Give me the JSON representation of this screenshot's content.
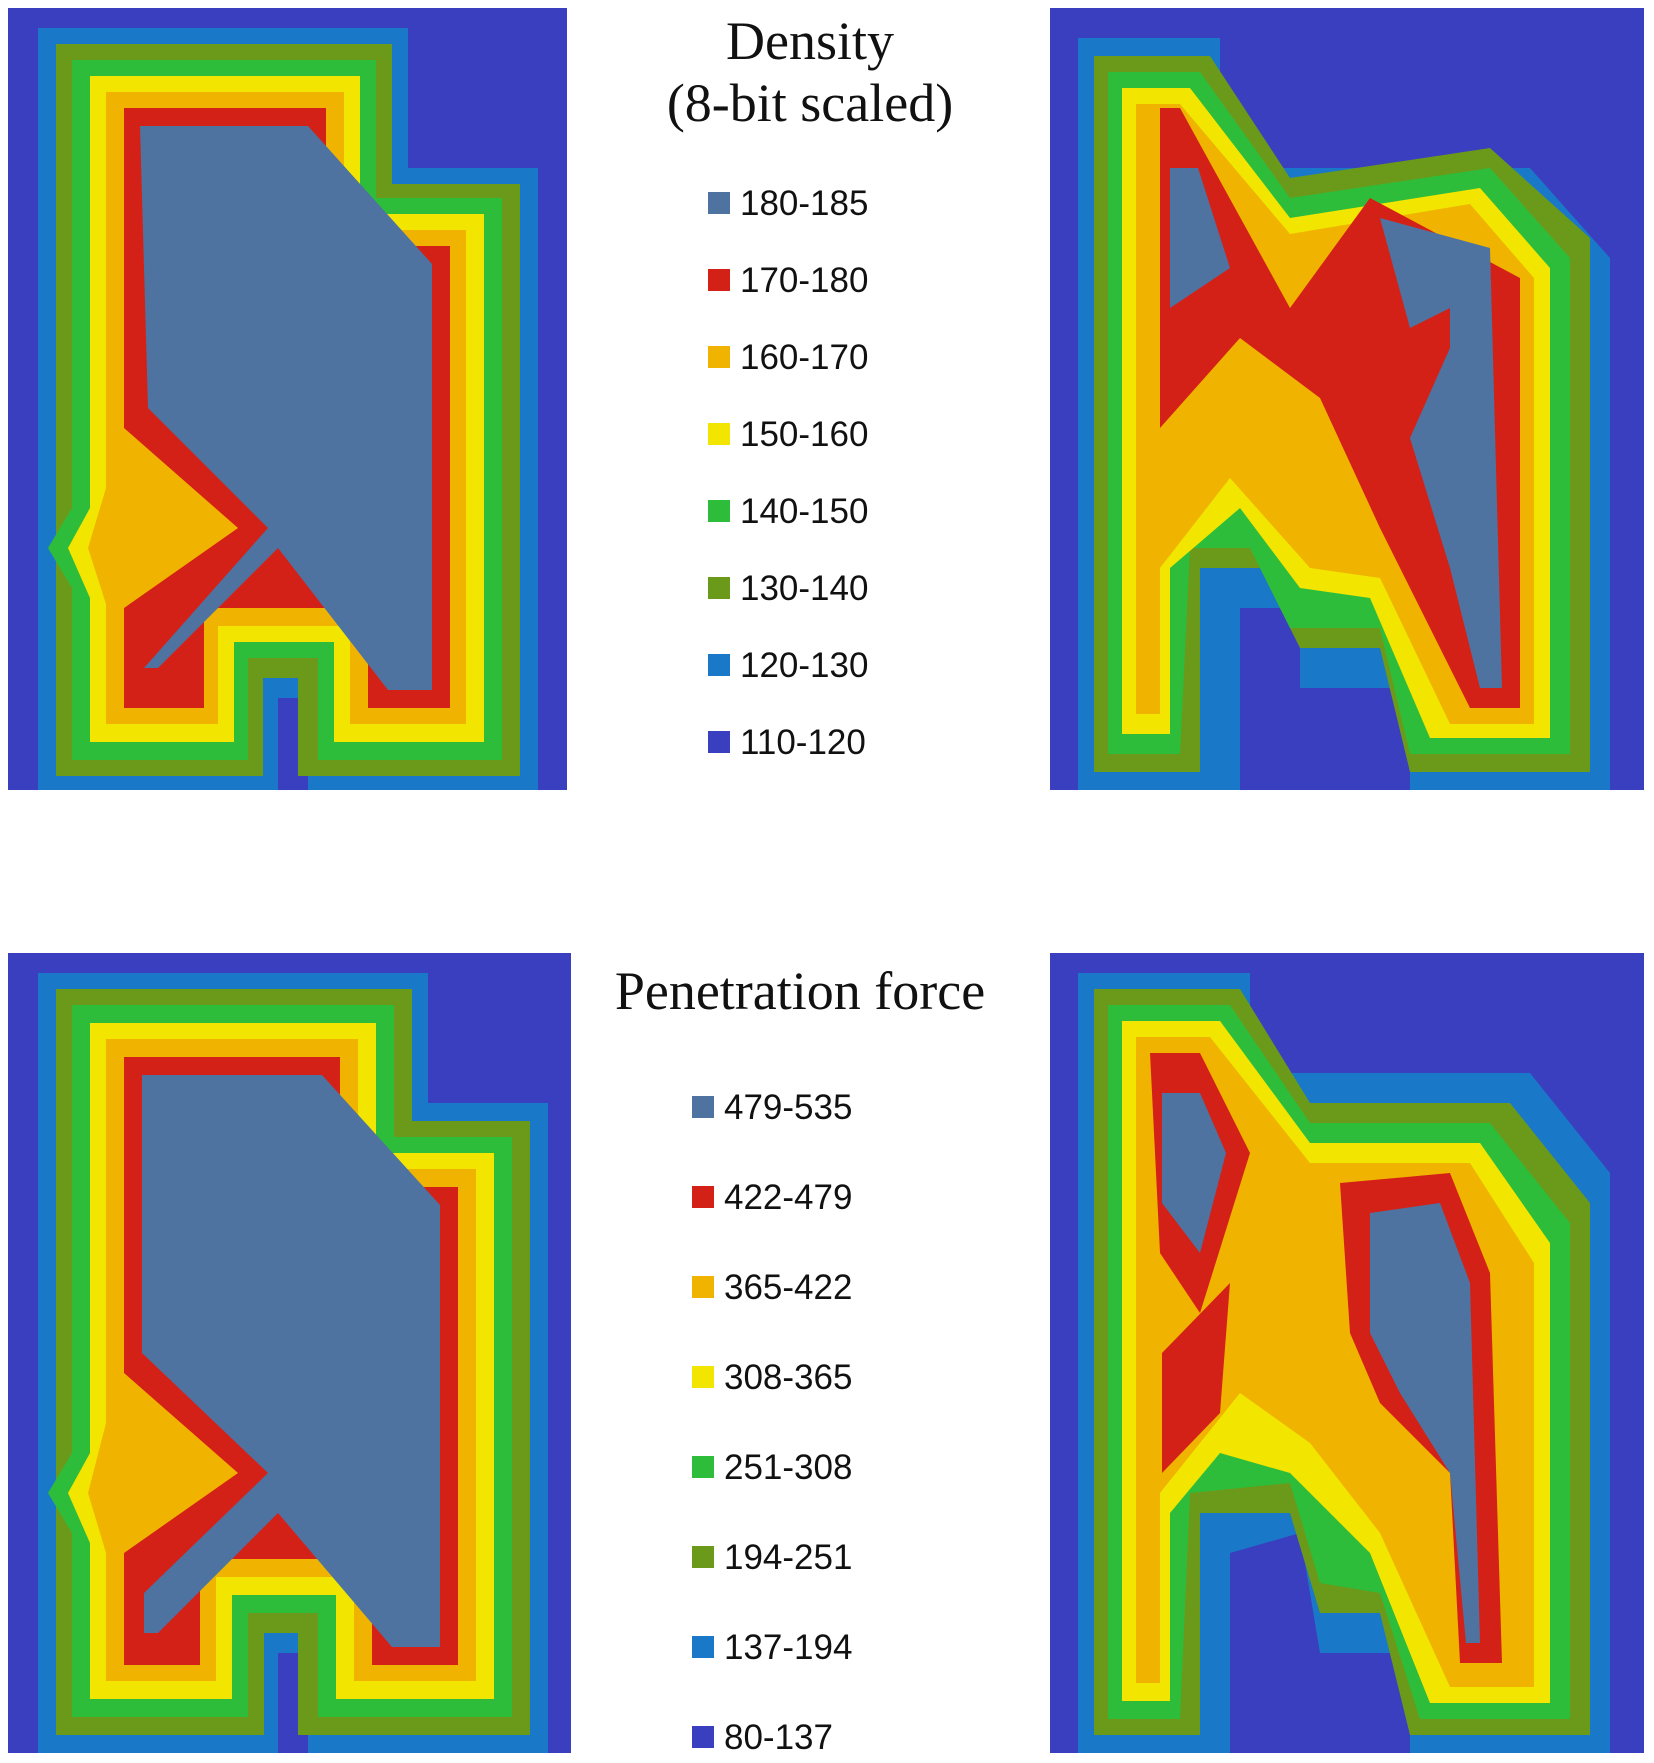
{
  "colors": {
    "c110": "#3a3fbf",
    "c120": "#1a78c8",
    "c130": "#6b9a1a",
    "c140": "#2ebd3a",
    "c150": "#f2e600",
    "c160": "#f0b400",
    "c170": "#d42118",
    "c180": "#4e73a0"
  },
  "density_legend": {
    "title_line1": "Density",
    "title_line2": "(8-bit scaled)",
    "items": [
      {
        "label": "180-185",
        "color": "#4e73a0"
      },
      {
        "label": "170-180",
        "color": "#d42118"
      },
      {
        "label": "160-170",
        "color": "#f0b400"
      },
      {
        "label": "150-160",
        "color": "#f2e600"
      },
      {
        "label": "140-150",
        "color": "#2ebd3a"
      },
      {
        "label": "130-140",
        "color": "#6b9a1a"
      },
      {
        "label": "120-130",
        "color": "#1a78c8"
      },
      {
        "label": "110-120",
        "color": "#3a3fbf"
      }
    ]
  },
  "force_legend": {
    "title": "Penetration force",
    "items": [
      {
        "label": "479-535",
        "color": "#4e73a0"
      },
      {
        "label": "422-479",
        "color": "#d42118"
      },
      {
        "label": "365-422",
        "color": "#f0b400"
      },
      {
        "label": "308-365",
        "color": "#f2e600"
      },
      {
        "label": "251-308",
        "color": "#2ebd3a"
      },
      {
        "label": "194-251",
        "color": "#6b9a1a"
      },
      {
        "label": "137-194",
        "color": "#1a78c8"
      },
      {
        "label": "80-137",
        "color": "#3a3fbf"
      }
    ]
  }
}
